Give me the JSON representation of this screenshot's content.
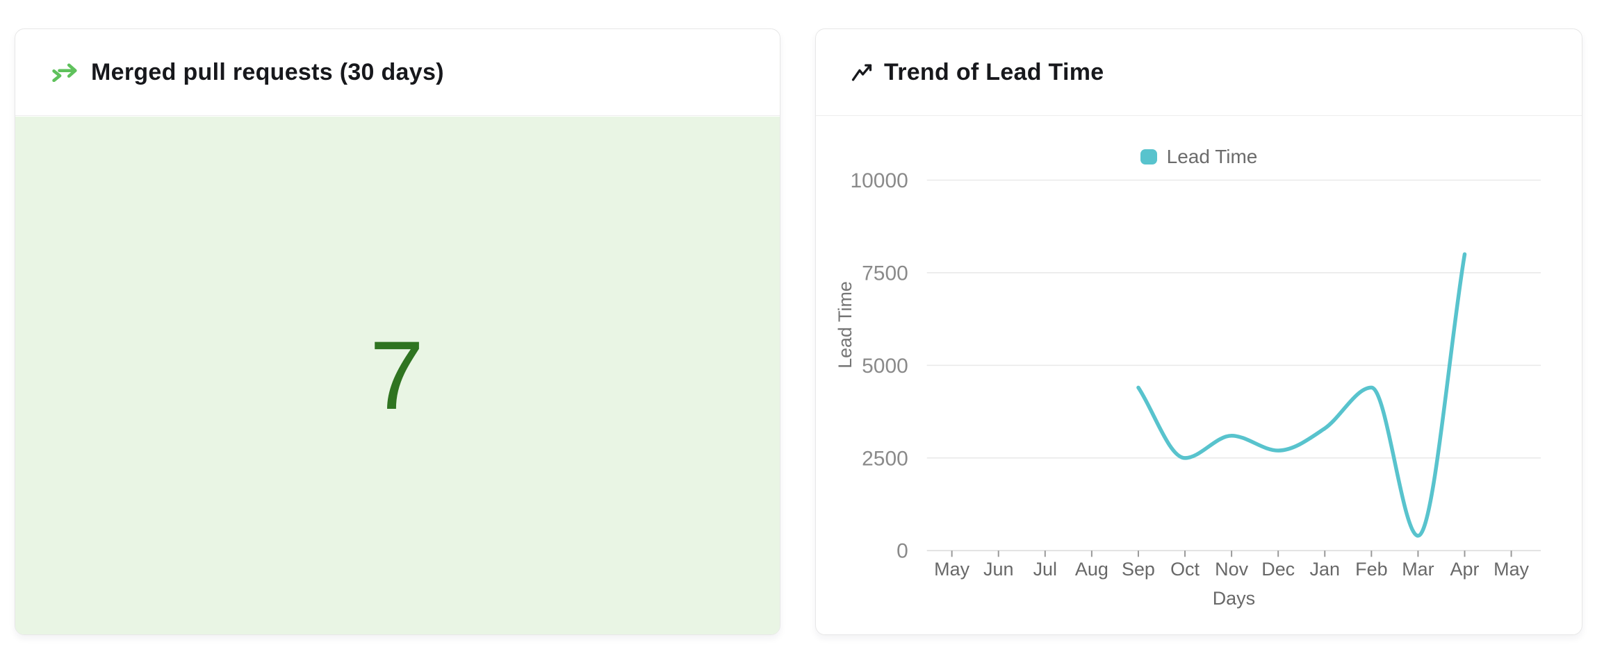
{
  "page": {
    "background": "#ffffff"
  },
  "left_card": {
    "title": "Merged pull requests (30 days)",
    "value": "7",
    "colors": {
      "icon_green": "#5fc15c",
      "value_green": "#2f7421",
      "panel_bg": "#e9f5e4"
    }
  },
  "right_card": {
    "title": "Trend of Lead Time",
    "legend": {
      "label": "Lead Time"
    }
  },
  "chart_data": {
    "type": "line",
    "title": "Trend of Lead Time",
    "xlabel": "Days",
    "ylabel": "Lead Time",
    "categories": [
      "May",
      "Jun",
      "Jul",
      "Aug",
      "Sep",
      "Oct",
      "Nov",
      "Dec",
      "Jan",
      "Feb",
      "Mar",
      "Apr",
      "May"
    ],
    "series": [
      {
        "name": "Lead Time",
        "color": "#58c3cd",
        "values": [
          null,
          null,
          null,
          null,
          4400,
          2500,
          3100,
          2700,
          3300,
          4400,
          400,
          8000,
          null
        ]
      }
    ],
    "ylim": [
      0,
      10000
    ],
    "yticks": [
      0,
      2500,
      5000,
      7500,
      10000
    ],
    "grid": true,
    "smooth": true,
    "legend_position": "top",
    "line_width": 5.5,
    "axis_text_color": "#8a8a8a",
    "xaxis_text_color": "#686868",
    "grid_color": "#e9e9e9",
    "axis_line_color": "#dcdcdc",
    "tick_color": "#999999"
  }
}
